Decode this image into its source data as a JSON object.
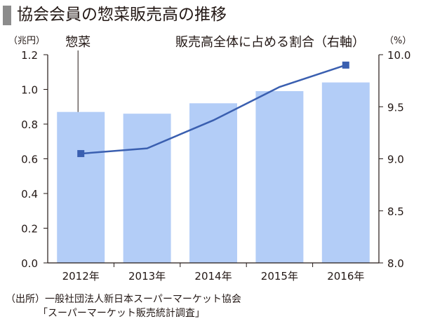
{
  "title": "協会会員の惣菜販売高の推移",
  "source": {
    "line1": "（出所）一般社団法人新日本スーパーマーケット協会",
    "line2": "「スーパーマーケット販売統計調査」"
  },
  "colors": {
    "bar": "#b3cdf7",
    "line": "#3a5fb0",
    "axis": "#231815"
  },
  "chart_data": {
    "type": "bar",
    "categories": [
      "2012年",
      "2013年",
      "2014年",
      "2015年",
      "2016年"
    ],
    "series": [
      {
        "name": "惣菜",
        "axis": "left",
        "type": "bar",
        "values": [
          0.87,
          0.86,
          0.92,
          0.99,
          1.04
        ]
      },
      {
        "name": "販売高全体に占める割合（右軸）",
        "axis": "right",
        "type": "line",
        "values": [
          9.05,
          9.1,
          9.37,
          9.69,
          9.9
        ]
      }
    ],
    "left_axis": {
      "unit": "（兆円）",
      "range": [
        0,
        1.2
      ],
      "ticks": [
        "0.0",
        "0.2",
        "0.4",
        "0.6",
        "0.8",
        "1.0",
        "1.2"
      ]
    },
    "right_axis": {
      "unit": "（%）",
      "range": [
        8.0,
        10.0
      ],
      "ticks": [
        "8.0",
        "8.5",
        "9.0",
        "9.5",
        "10.0"
      ]
    },
    "grid": false
  }
}
